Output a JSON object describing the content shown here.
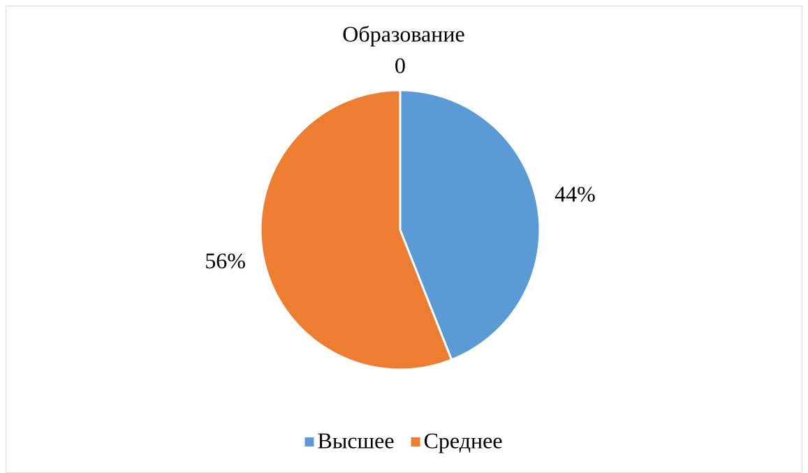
{
  "chart_data": {
    "type": "pie",
    "title": "Образование",
    "subtitle": "0",
    "categories": [
      "Высшее",
      "Среднее"
    ],
    "values": [
      44,
      56
    ],
    "value_labels": [
      "44%",
      "56%"
    ],
    "colors": [
      "#5b9bd5",
      "#ed7d31"
    ],
    "legend": "bottom"
  }
}
